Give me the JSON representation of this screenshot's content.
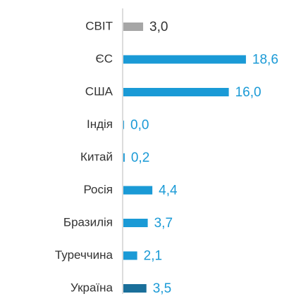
{
  "chart_data": {
    "type": "bar",
    "orientation": "horizontal",
    "categories": [
      "СВІТ",
      "ЄС",
      "США",
      "Індія",
      "Китай",
      "Росія",
      "Бразилія",
      "Туреччина",
      "Україна"
    ],
    "values": [
      3.0,
      18.6,
      16.0,
      0.0,
      0.2,
      4.4,
      3.7,
      2.1,
      3.5
    ],
    "value_labels": [
      "3,0",
      "18,6",
      "16,0",
      "0,0",
      "0,2",
      "4,4",
      "3,7",
      "2,1",
      "3,5"
    ],
    "colors": [
      "#a6a6a6",
      "#1a9ad6",
      "#1a9ad6",
      "#1a9ad6",
      "#1a9ad6",
      "#1a9ad6",
      "#1a9ad6",
      "#1a9ad6",
      "#1a6f9a"
    ],
    "label_colors": [
      "#333333",
      "#1a9ad6",
      "#1a9ad6",
      "#1a9ad6",
      "#1a9ad6",
      "#1a9ad6",
      "#1a9ad6",
      "#1a9ad6",
      "#1a9ad6"
    ]
  }
}
